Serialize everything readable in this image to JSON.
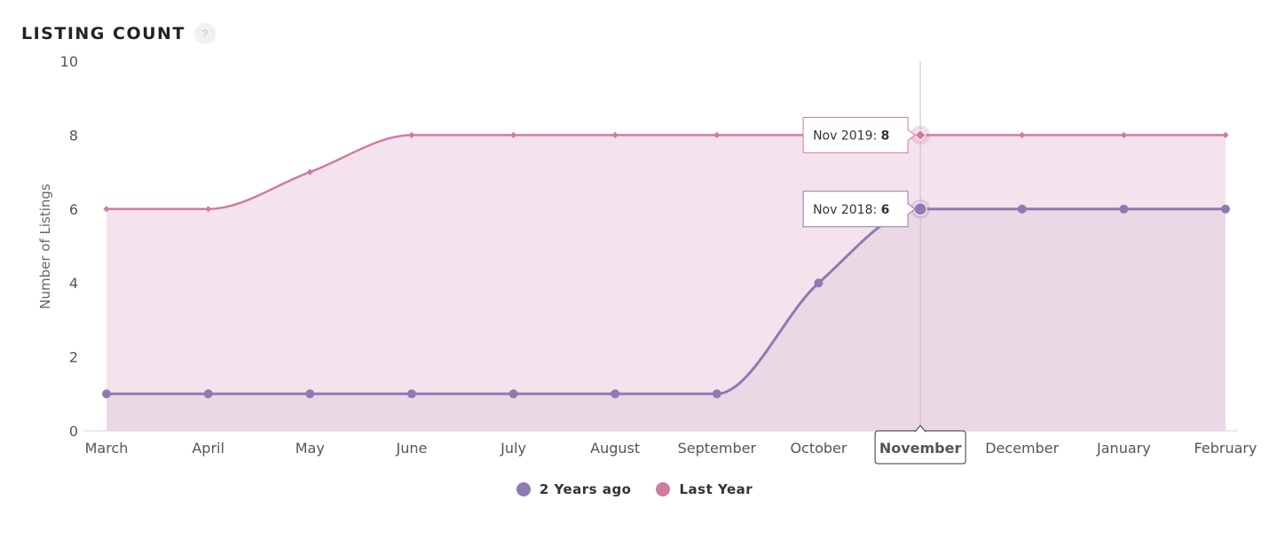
{
  "header": {
    "title": "LISTING COUNT",
    "help_label": "?"
  },
  "colors": {
    "two_years_ago": "#8f7bb0",
    "last_year": "#d17aa3",
    "last_year_fill": "#f4e3ed",
    "two_years_ago_fill": "#ead9e5"
  },
  "chart_data": {
    "type": "area",
    "categories": [
      "March",
      "April",
      "May",
      "June",
      "July",
      "August",
      "September",
      "October",
      "November",
      "December",
      "January",
      "February"
    ],
    "series": [
      {
        "name": "2 Years ago",
        "values": [
          1,
          1,
          1,
          1,
          1,
          1,
          1,
          4,
          6,
          6,
          6,
          6
        ]
      },
      {
        "name": "Last Year",
        "values": [
          6,
          6,
          7,
          8,
          8,
          8,
          8,
          8,
          8,
          8,
          8,
          8
        ]
      }
    ],
    "ylabel": "Number of Listings",
    "ylim": [
      0,
      10
    ],
    "yticks": [
      0,
      2,
      4,
      6,
      8,
      10
    ],
    "highlighted_category": "November",
    "tooltips": [
      {
        "label": "Nov 2019:",
        "value": "8",
        "series": "Last Year"
      },
      {
        "label": "Nov 2018:",
        "value": "6",
        "series": "2 Years ago"
      }
    ],
    "legend_position": "bottom"
  },
  "legend": [
    {
      "label": "2 Years ago",
      "icon": "circle"
    },
    {
      "label": "Last Year",
      "icon": "circle"
    }
  ]
}
